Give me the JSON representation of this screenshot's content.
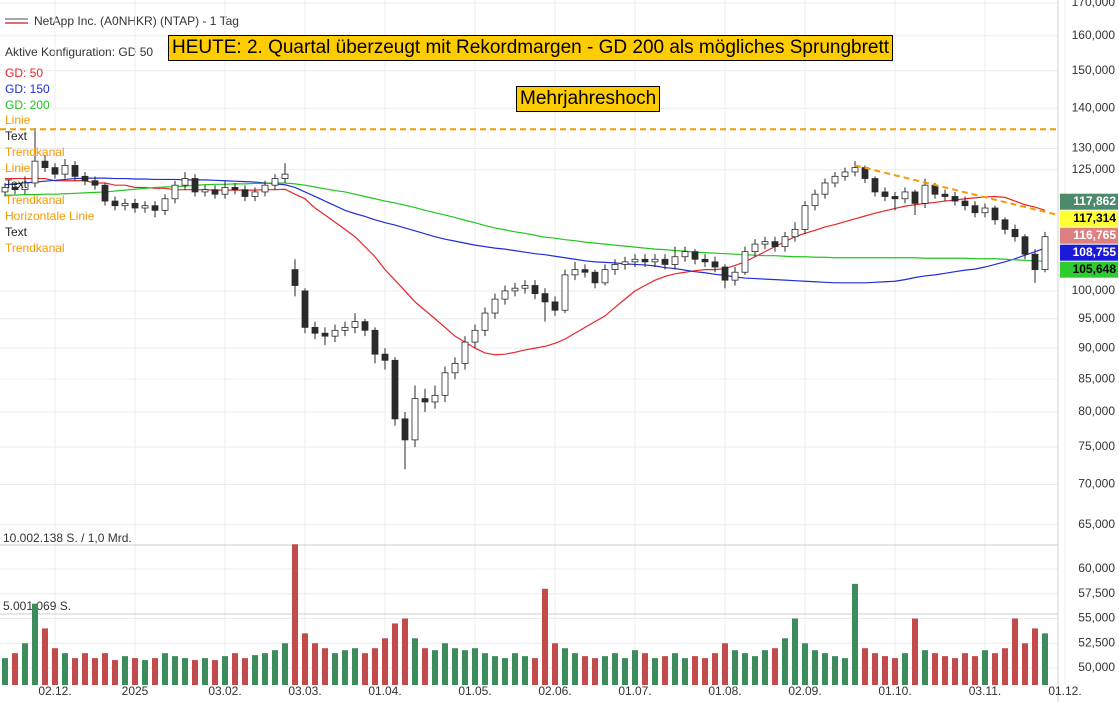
{
  "chart_data": {
    "type": "candlestick",
    "title": "NetApp Inc. (A0NHKR) (NTAP) - 1 Tag",
    "subtitle": "Aktive Konfiguration: GD 50",
    "headline": "HEUTE: 2. Quartal überzeugt mit Rekordmargen - GD 200 als mögliches Sprungbrett",
    "annotation": "Mehrjahreshoch",
    "drawing_tools": [
      {
        "label": "Linie",
        "color": "#f59a00"
      },
      {
        "label": "Text",
        "color": "#222222"
      },
      {
        "label": "Trendkanal",
        "color": "#f59a00"
      },
      {
        "label": "Linie",
        "color": "#f59a00"
      },
      {
        "label": "Text",
        "color": "#222222"
      },
      {
        "label": "Trendkanal",
        "color": "#f59a00"
      },
      {
        "label": "Horizontale Linie",
        "color": "#f59a00"
      },
      {
        "label": "Text",
        "color": "#222222"
      },
      {
        "label": "Trendkanal",
        "color": "#f59a00"
      }
    ],
    "categories": [
      null,
      null,
      null,
      null,
      null,
      "02.12.",
      null,
      null,
      null,
      null,
      null,
      null,
      null,
      "2025",
      null,
      null,
      null,
      null,
      null,
      null,
      null,
      null,
      "03.02.",
      null,
      null,
      null,
      null,
      null,
      null,
      null,
      "03.03.",
      null,
      null,
      null,
      null,
      null,
      null,
      null,
      "01.04.",
      null,
      null,
      null,
      null,
      null,
      null,
      null,
      null,
      "01.05.",
      null,
      null,
      null,
      null,
      null,
      null,
      null,
      "02.06.",
      null,
      null,
      null,
      null,
      null,
      null,
      null,
      "01.07.",
      null,
      null,
      null,
      null,
      null,
      null,
      null,
      null,
      "01.08.",
      null,
      null,
      null,
      null,
      null,
      null,
      null,
      "02.09.",
      null,
      null,
      null,
      null,
      null,
      null,
      null,
      null,
      "01.10.",
      null,
      null,
      null,
      null,
      null,
      null,
      null,
      null,
      "03.11.",
      null,
      null,
      null,
      null,
      null,
      null,
      null,
      "01.12."
    ],
    "open": [
      120000,
      121000,
      120500,
      122000,
      127000,
      125500,
      124000,
      126000,
      123500,
      122500,
      121500,
      118000,
      117000,
      117500,
      116500,
      117000,
      116000,
      118500,
      121500,
      123000,
      120000,
      120500,
      119500,
      121000,
      120500,
      119000,
      120000,
      121500,
      123000,
      104000,
      100000,
      93500,
      92500,
      92000,
      93000,
      93500,
      94500,
      93000,
      89000,
      88000,
      79000,
      76000,
      82000,
      81500,
      82500,
      86000,
      87500,
      91000,
      93000,
      96000,
      98500,
      100000,
      100500,
      101000,
      99500,
      98000,
      96500,
      103000,
      104000,
      103500,
      101500,
      104000,
      105000,
      105500,
      106000,
      105500,
      106000,
      105000,
      106500,
      107500,
      106000,
      105500,
      104500,
      102000,
      103500,
      107500,
      109000,
      109500,
      108500,
      110500,
      112000,
      117000,
      119500,
      122000,
      123500,
      124500,
      125500,
      123000,
      120000,
      119000,
      118500,
      120000,
      117500,
      121500,
      119500,
      119000,
      118000,
      117000,
      115500,
      116500,
      114000,
      112000,
      110500,
      107000,
      104000,
      null,
      null
    ],
    "high": [
      122000,
      122000,
      123500,
      135000,
      128500,
      126500,
      127500,
      127000,
      124500,
      123500,
      122000,
      119000,
      118500,
      118500,
      118000,
      118000,
      119500,
      122500,
      124500,
      124000,
      121500,
      121500,
      122500,
      122000,
      121500,
      121000,
      122500,
      124000,
      126500,
      106000,
      100500,
      94500,
      93500,
      94000,
      94500,
      96000,
      95000,
      93500,
      90000,
      88500,
      80000,
      84000,
      83500,
      84000,
      87000,
      88500,
      92000,
      94000,
      97000,
      99500,
      101000,
      101500,
      102000,
      102000,
      100500,
      99000,
      104000,
      105500,
      105000,
      104000,
      105000,
      106000,
      106500,
      107000,
      107000,
      107000,
      107000,
      108500,
      108500,
      108000,
      107000,
      106500,
      105000,
      104500,
      108500,
      110000,
      110500,
      110500,
      111500,
      113500,
      118000,
      120500,
      123000,
      124500,
      125500,
      127000,
      126000,
      123500,
      121000,
      120000,
      121000,
      120500,
      123000,
      122000,
      120500,
      120000,
      119000,
      118000,
      117500,
      117000,
      114500,
      113000,
      111000,
      108000,
      111500,
      null,
      null
    ],
    "low": [
      119000,
      119500,
      119500,
      121000,
      124500,
      123000,
      123000,
      122500,
      121500,
      120500,
      117000,
      116000,
      116000,
      115500,
      115500,
      114500,
      115000,
      117500,
      120500,
      119000,
      119000,
      118500,
      118500,
      119500,
      118000,
      118000,
      119000,
      120500,
      122000,
      99000,
      92500,
      91500,
      90500,
      91000,
      92000,
      92500,
      92000,
      87500,
      86500,
      78000,
      72000,
      75000,
      80000,
      80500,
      81500,
      85000,
      86500,
      90000,
      92000,
      95000,
      97500,
      99000,
      99500,
      98500,
      94500,
      95500,
      96000,
      102000,
      102500,
      100500,
      101000,
      103000,
      104000,
      104500,
      104500,
      104500,
      104000,
      104000,
      105500,
      105000,
      104500,
      103500,
      100500,
      101000,
      103000,
      106500,
      108000,
      107500,
      107500,
      109500,
      111000,
      116000,
      118500,
      121000,
      122500,
      123500,
      122000,
      119000,
      118000,
      116000,
      117500,
      115000,
      116500,
      118500,
      118000,
      117000,
      116000,
      114500,
      114500,
      113000,
      111000,
      109500,
      106000,
      101500,
      103500,
      null,
      null
    ],
    "close": [
      121000,
      120500,
      122000,
      127000,
      125500,
      124000,
      126000,
      123500,
      122500,
      121500,
      118000,
      117000,
      117500,
      116500,
      117000,
      116000,
      118500,
      121500,
      123000,
      120000,
      120500,
      119500,
      121000,
      120500,
      119000,
      120000,
      121500,
      123000,
      124000,
      101000,
      93500,
      92500,
      92000,
      93000,
      93500,
      94500,
      93000,
      89000,
      88000,
      79000,
      76000,
      82000,
      81500,
      82500,
      86000,
      87500,
      91000,
      93000,
      96000,
      98500,
      100000,
      100500,
      101000,
      99500,
      98000,
      96500,
      103000,
      104000,
      103500,
      101500,
      104000,
      105000,
      105500,
      106000,
      105500,
      106000,
      105000,
      106500,
      107500,
      106000,
      105500,
      104500,
      102000,
      103500,
      107500,
      109000,
      109500,
      108500,
      110500,
      112000,
      117000,
      119500,
      122000,
      123500,
      124500,
      125500,
      123000,
      120000,
      119000,
      118500,
      120000,
      117500,
      121500,
      119500,
      119000,
      118000,
      117000,
      115500,
      116500,
      114000,
      112000,
      110500,
      107000,
      104000,
      110500,
      null,
      null
    ],
    "up_color": "#ffffff",
    "down_color": "#2a2a2a",
    "wick_color": "#2a2a2a",
    "ylim": [
      63200,
      170900
    ],
    "log_y": true,
    "grid": true,
    "yticks": [
      {
        "value": 170000,
        "label": "170,000"
      },
      {
        "value": 160000,
        "label": "160,000"
      },
      {
        "value": 150000,
        "label": "150,000"
      },
      {
        "value": 140000,
        "label": "140,000"
      },
      {
        "value": 130000,
        "label": "130,000"
      },
      {
        "value": 125000,
        "label": "125,000"
      },
      {
        "value": 100000,
        "label": "100,000"
      },
      {
        "value": 95000,
        "label": "95,000"
      },
      {
        "value": 90000,
        "label": "90,000"
      },
      {
        "value": 85000,
        "label": "85,000"
      },
      {
        "value": 80000,
        "label": "80,000"
      },
      {
        "value": 75000,
        "label": "75,000"
      },
      {
        "value": 70000,
        "label": "70,000"
      },
      {
        "value": 65000,
        "label": "65,000"
      }
    ],
    "series": [
      {
        "name": "GD: 50",
        "color": "#e8262a",
        "values": [
          123000,
          123000,
          123000,
          123000,
          123000,
          122500,
          122500,
          122500,
          122500,
          122000,
          122000,
          121500,
          121500,
          121000,
          121000,
          120800,
          120800,
          120500,
          120500,
          120500,
          120500,
          120400,
          120400,
          120400,
          120400,
          120400,
          120500,
          120500,
          120600,
          119500,
          118500,
          116500,
          115000,
          113500,
          112000,
          110500,
          108500,
          106500,
          104000,
          102000,
          100000,
          98000,
          96500,
          95000,
          93500,
          92000,
          91000,
          90000,
          89200,
          88900,
          89000,
          89300,
          89700,
          90000,
          90300,
          90800,
          91500,
          92500,
          93500,
          94500,
          95500,
          97000,
          98500,
          100000,
          101000,
          102000,
          102700,
          103200,
          103500,
          103800,
          104000,
          104000,
          104200,
          104800,
          105500,
          106500,
          107500,
          108500,
          109500,
          110500,
          111200,
          111800,
          112500,
          113000,
          113600,
          114200,
          114800,
          115400,
          115900,
          116400,
          116900,
          117200,
          117500,
          117700,
          118000,
          118200,
          118500,
          118700,
          118900,
          119000,
          118800,
          118000,
          117200,
          116700,
          116000,
          null,
          null
        ]
      },
      {
        "name": "GD: 150",
        "color": "#1f2fd6",
        "values": [
          121600,
          121800,
          122000,
          122200,
          122400,
          122600,
          122800,
          123000,
          123100,
          123100,
          123100,
          123000,
          123000,
          122900,
          122900,
          122800,
          122800,
          122800,
          122700,
          122700,
          122700,
          122600,
          122500,
          122400,
          122300,
          122200,
          122000,
          121800,
          121600,
          121000,
          120000,
          119000,
          118000,
          117000,
          116000,
          115300,
          114700,
          114000,
          113400,
          112900,
          112300,
          111700,
          111100,
          110500,
          110000,
          109600,
          109200,
          108800,
          108500,
          108200,
          108000,
          107700,
          107400,
          107100,
          106900,
          106600,
          106300,
          106000,
          105700,
          105500,
          105400,
          105300,
          105100,
          105000,
          104900,
          104700,
          104400,
          104200,
          103900,
          103600,
          103400,
          103100,
          102900,
          102600,
          102400,
          102300,
          102200,
          102100,
          102000,
          101900,
          101800,
          101700,
          101600,
          101500,
          101500,
          101500,
          101500,
          101600,
          101700,
          101800,
          102100,
          102500,
          102800,
          103000,
          103300,
          103600,
          103900,
          104100,
          104500,
          105000,
          105500,
          106100,
          106800,
          107500,
          108200,
          null,
          null
        ]
      },
      {
        "name": "GD: 200",
        "color": "#22c41e",
        "values": [
          119300,
          119300,
          119400,
          119400,
          119500,
          119500,
          119600,
          119700,
          119800,
          119900,
          120000,
          120200,
          120400,
          120600,
          120800,
          121000,
          121100,
          121200,
          121300,
          121500,
          121600,
          121700,
          121700,
          121800,
          121800,
          121900,
          121900,
          122000,
          122000,
          121800,
          121500,
          121100,
          120700,
          120300,
          120000,
          119500,
          119000,
          118500,
          118000,
          117600,
          117100,
          116600,
          116000,
          115500,
          115000,
          114500,
          113900,
          113400,
          112800,
          112300,
          111900,
          111500,
          111200,
          110800,
          110400,
          110200,
          109900,
          109700,
          109400,
          109200,
          109000,
          108800,
          108600,
          108400,
          108200,
          108000,
          107900,
          107700,
          107600,
          107400,
          107300,
          107200,
          107100,
          107000,
          106900,
          106800,
          106700,
          106700,
          106600,
          106500,
          106500,
          106400,
          106400,
          106300,
          106300,
          106300,
          106300,
          106300,
          106300,
          106300,
          106300,
          106300,
          106200,
          106200,
          106200,
          106200,
          106200,
          106100,
          106100,
          106100,
          106000,
          105900,
          105800,
          105700,
          105600,
          null,
          null
        ]
      }
    ],
    "horizontal_line": {
      "value": 134700,
      "color": "#f59a00"
    },
    "trend_line": {
      "x": [
        85,
        106
      ],
      "values": [
        126000,
        115000
      ],
      "color": "#f59a00"
    },
    "price_labels": [
      {
        "value": 117862,
        "label": "117,862",
        "color": "#4b8b6b",
        "text_color": "#ffffff"
      },
      {
        "value": 117314,
        "label": "117,314",
        "color": "#ffff33",
        "text_color": "#000000"
      },
      {
        "value": 116765,
        "label": "116,765",
        "color": "#de8080",
        "text_color": "#ffffff"
      },
      {
        "value": 108755,
        "label": "108,755",
        "color": "#1a1ad8",
        "text_color": "#ffffff"
      },
      {
        "value": 105648,
        "label": "105,648",
        "color": "#2ecc2e",
        "text_color": "#000000"
      }
    ],
    "volume": {
      "labels": [
        "10.002.138 S. / 1,0 Mrd.",
        "5.001.069 S."
      ],
      "up_color": "#3d8c5c",
      "down_color": "#c24b4b",
      "ylim": [
        48283,
        62424
      ],
      "yticks": [
        {
          "value": 60000,
          "label": "60,000"
        },
        {
          "value": 57500,
          "label": "57,500"
        },
        {
          "value": 55000,
          "label": "55,000"
        },
        {
          "value": 52500,
          "label": "52,500"
        },
        {
          "value": 50000,
          "label": "50,000"
        }
      ],
      "values": [
        51000,
        51500,
        52500,
        56500,
        54000,
        52000,
        51500,
        51000,
        51500,
        51000,
        51500,
        50800,
        51200,
        51000,
        50800,
        51000,
        51500,
        51200,
        51000,
        50800,
        51000,
        50800,
        51200,
        51500,
        51000,
        51300,
        51500,
        51800,
        52500,
        62500,
        53500,
        52500,
        52000,
        51500,
        51800,
        52000,
        51500,
        52000,
        53000,
        54500,
        55000,
        53000,
        52000,
        51800,
        52500,
        52000,
        51800,
        52000,
        51500,
        51200,
        51000,
        51500,
        51200,
        51000,
        58000,
        52500,
        52000,
        51500,
        51200,
        51000,
        51200,
        51500,
        51000,
        51800,
        51500,
        51000,
        51200,
        51500,
        51000,
        51200,
        51000,
        51500,
        52500,
        51800,
        51500,
        51200,
        51800,
        52000,
        53000,
        55000,
        52500,
        51800,
        51500,
        51200,
        51000,
        58500,
        52000,
        51500,
        51200,
        51000,
        51500,
        55000,
        51800,
        51500,
        51200,
        51000,
        51500,
        51200,
        51800,
        51500,
        52000,
        55000,
        52500,
        54000,
        53500,
        null,
        null
      ]
    }
  }
}
